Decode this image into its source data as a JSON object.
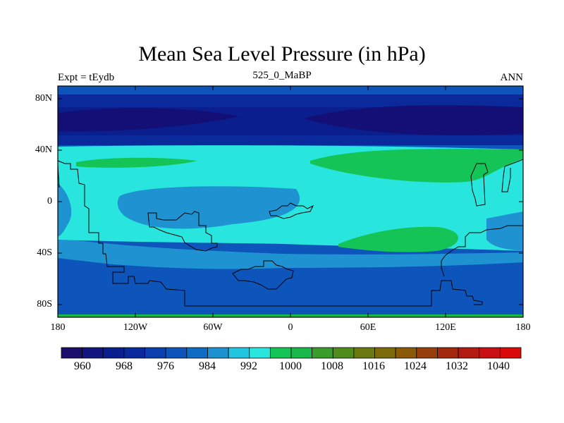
{
  "title": "Mean Sea Level Pressure (in hPa)",
  "subtitle_left": "Expt = tEydb",
  "subtitle_center": "525_0_MaBP",
  "subtitle_right": "ANN",
  "y_axis_labels": [
    "80N",
    "40N",
    "0",
    "40S",
    "80S"
  ],
  "x_axis_labels": [
    "180",
    "120W",
    "60W",
    "0",
    "60E",
    "120E",
    "180"
  ],
  "colorbar": {
    "labels": [
      "960",
      "968",
      "976",
      "984",
      "992",
      "1000",
      "1008",
      "1016",
      "1024",
      "1032",
      "1040"
    ],
    "colors": [
      "#1a0f6b",
      "#12157e",
      "#0b1e8e",
      "#0a2a9c",
      "#0b3fae",
      "#0d55bb",
      "#0f6cc4",
      "#1f93d2",
      "#22c6e0",
      "#28e6dd",
      "#14c456",
      "#18b84a",
      "#3a9d2b",
      "#4f8c1c",
      "#6a7a10",
      "#7c6a0b",
      "#8b5a08",
      "#963f0a",
      "#a3290d",
      "#b31a12",
      "#c80f14",
      "#d80a0a"
    ]
  },
  "map_colors": {
    "band_976": "#0b1e8e",
    "band_984": "#0a2a9c",
    "band_992": "#0d55bb",
    "band_1000": "#1f93d2",
    "band_1008": "#28e6dd",
    "band_1016": "#14c456",
    "band_high": "#18b84a"
  }
}
